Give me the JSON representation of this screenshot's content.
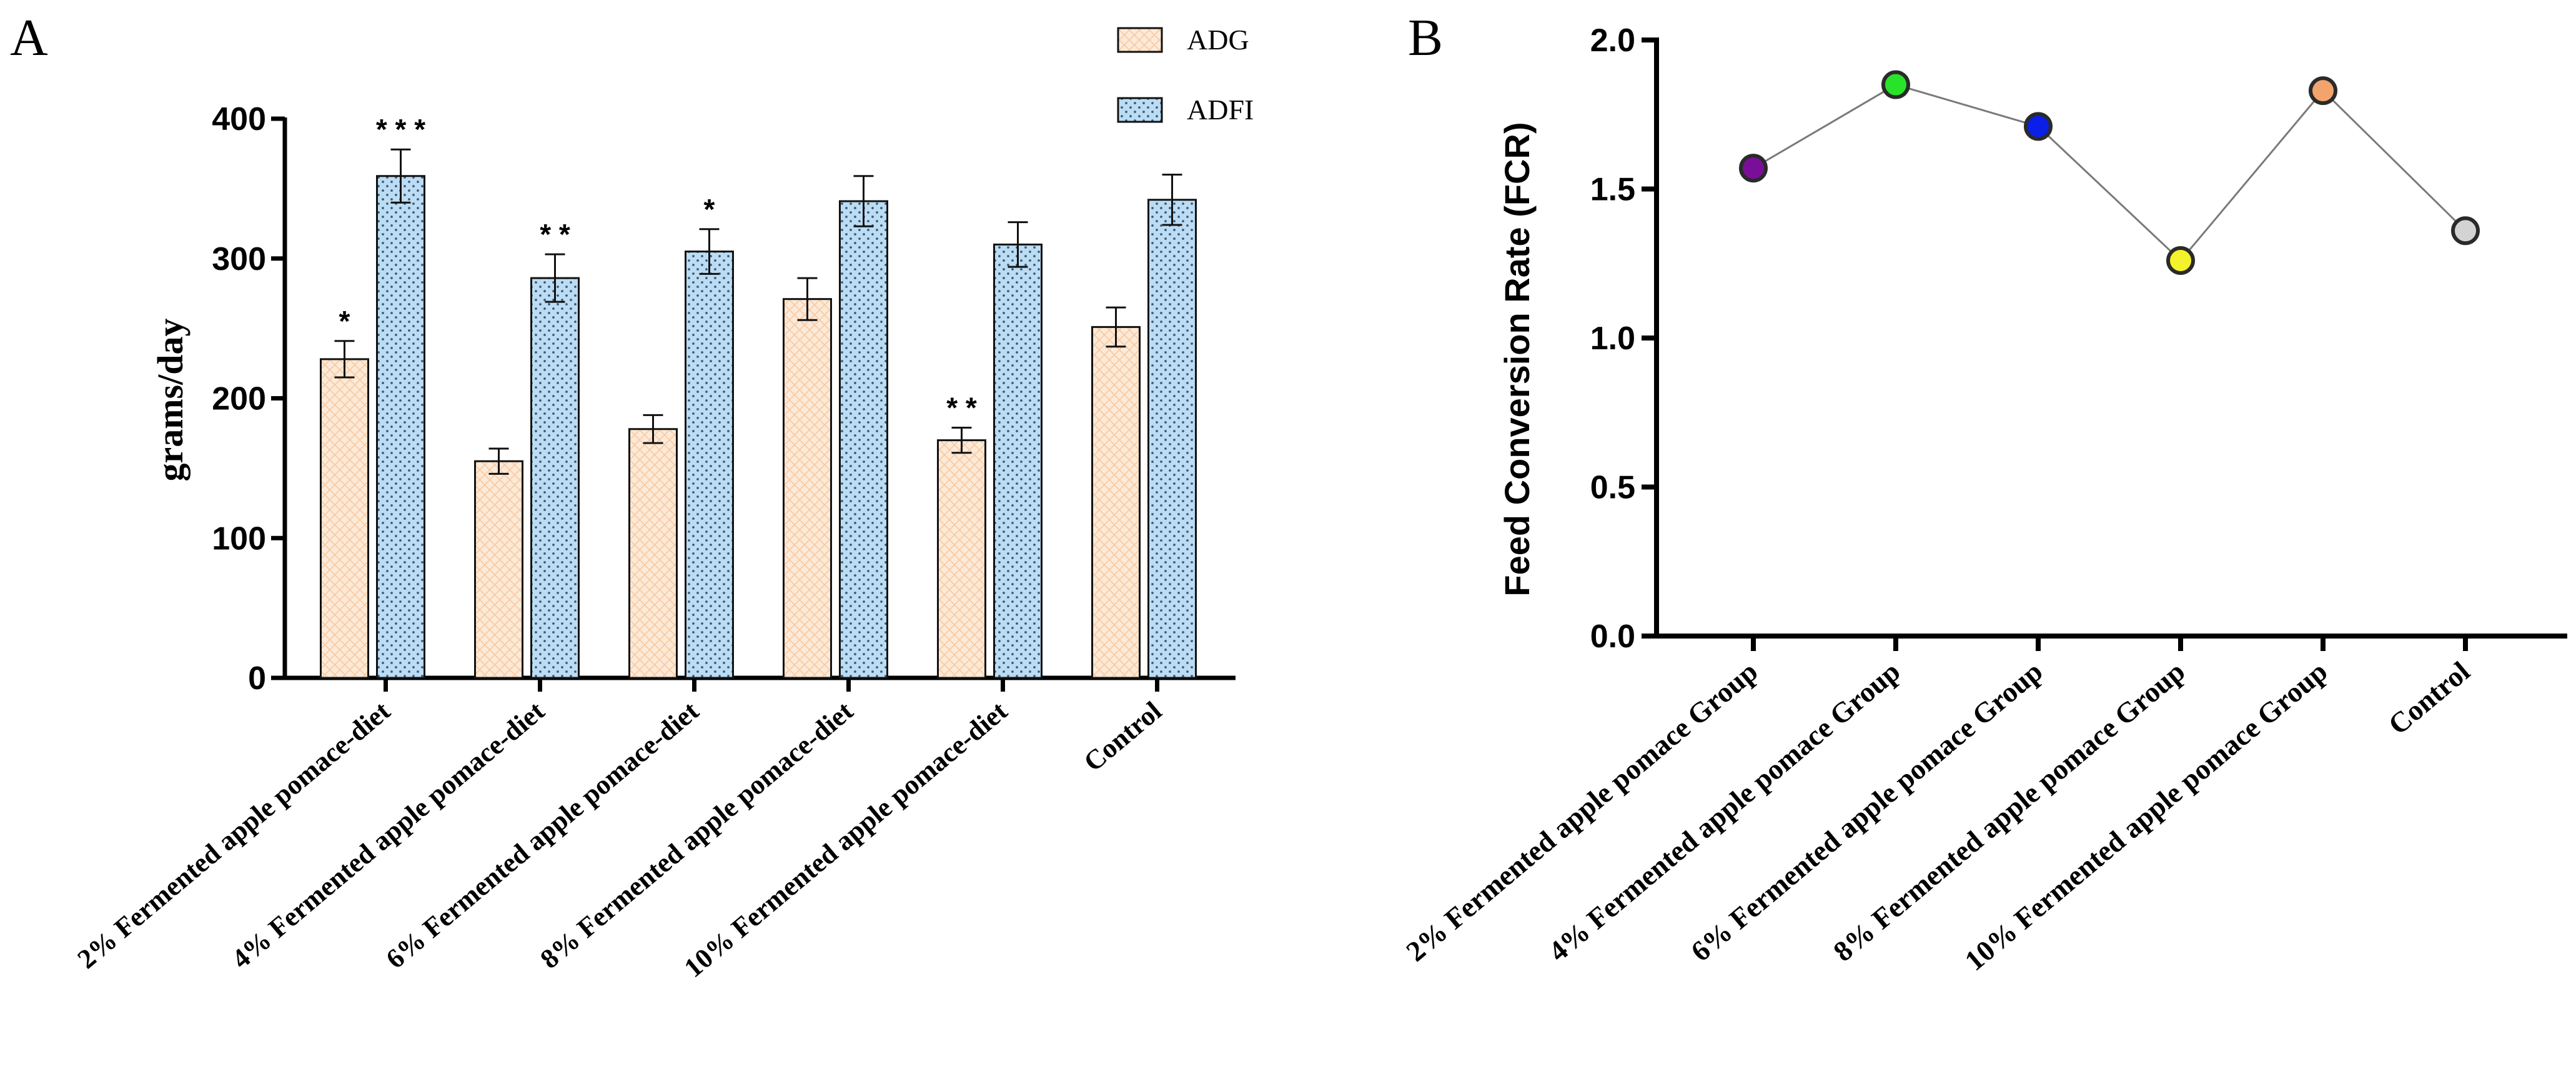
{
  "panels": {
    "a_letter": "A",
    "b_letter": "B"
  },
  "chart_data": [
    {
      "panel": "A",
      "type": "bar",
      "ylabel": "grams/day",
      "xlabel": "",
      "ylim": [
        0,
        400
      ],
      "yticks": [
        0,
        100,
        200,
        300,
        400
      ],
      "legend_position": "top-right",
      "categories": [
        "2% Fermented apple pomace-diet",
        "4% Fermented apple pomace-diet",
        "6% Fermented apple pomace-diet",
        "8% Fermented apple pomace-diet",
        "10% Fermented apple pomace-diet",
        "Control"
      ],
      "series": [
        {
          "name": "ADG",
          "values": [
            228,
            155,
            178,
            271,
            170,
            251
          ],
          "errors": [
            13,
            9,
            10,
            15,
            9,
            14
          ],
          "significance": [
            "*",
            "",
            "",
            "",
            "* *",
            ""
          ],
          "color": "#fde5cf",
          "pattern": "crosshatch"
        },
        {
          "name": "ADFI",
          "values": [
            359,
            286,
            305,
            341,
            310,
            342
          ],
          "errors": [
            19,
            17,
            16,
            18,
            16,
            18
          ],
          "significance": [
            "* * *",
            "* *",
            "*",
            "",
            "",
            ""
          ],
          "color": "#bcdcf3",
          "pattern": "dots"
        }
      ]
    },
    {
      "panel": "B",
      "type": "line",
      "ylabel": "Feed Conversion Rate (FCR)",
      "xlabel": "",
      "ylim": [
        0,
        2.0
      ],
      "yticks": [
        "0.0",
        "0.5",
        "1.0",
        "1.5",
        "2.0"
      ],
      "categories": [
        "2% Fermented apple pomace Group",
        "4% Fermented apple pomace Group",
        "6% Fermented apple pomace Group",
        "8% Fermented apple pomace Group",
        "10% Fermented apple pomace Group",
        "Control"
      ],
      "values": [
        1.57,
        1.85,
        1.71,
        1.26,
        1.83,
        1.36
      ],
      "marker_colors": [
        "#7b0e98",
        "#29e32a",
        "#0a1fe8",
        "#f4f22a",
        "#f2a46c",
        "#d3d3d3"
      ]
    }
  ]
}
